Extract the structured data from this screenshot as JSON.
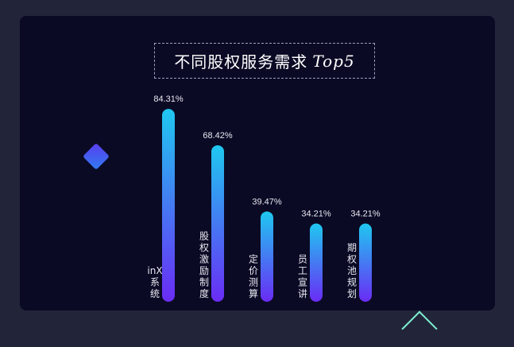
{
  "title_text": "不同股权服务需求",
  "title_suffix": "Top5",
  "chart_data": {
    "type": "bar",
    "title": "不同股权服务需求 Top5",
    "categories": [
      "inX系统",
      "股权激励制度",
      "定价测算",
      "员工宣讲",
      "期权池规划"
    ],
    "values": [
      84.31,
      68.42,
      39.47,
      34.21,
      34.21
    ],
    "value_labels": [
      "84.31%",
      "68.42%",
      "39.47%",
      "34.21%",
      "34.21%"
    ],
    "ylim": [
      0,
      100
    ],
    "grid": false,
    "colors": {
      "bar_top": "#1fc8f0",
      "bar_bottom": "#6a2cf5",
      "text": "#e6e8f0",
      "background": "#0b0a25"
    }
  }
}
